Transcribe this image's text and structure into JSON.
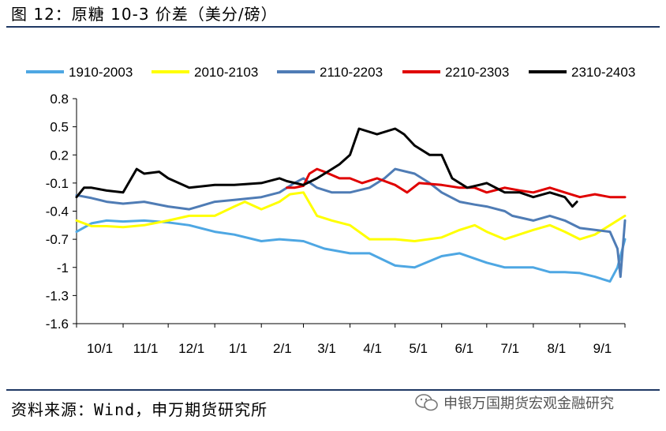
{
  "header": {
    "title": "图 12：原糖 10-3 价差（美分/磅）"
  },
  "footer": {
    "source": "资料来源：Wind，申万期货研究所",
    "watermark": "申银万国期货宏观金融研究"
  },
  "chart_data": {
    "type": "line",
    "title": "",
    "xlabel": "",
    "ylabel": "",
    "ylim": [
      -1.6,
      0.8
    ],
    "yticks": [
      "0.8",
      "0.5",
      "0.2",
      "-0.1",
      "-0.4",
      "-0.7",
      "-1",
      "-1.3",
      "-1.6"
    ],
    "ytick_values": [
      0.8,
      0.5,
      0.2,
      -0.1,
      -0.4,
      -0.7,
      -1.0,
      -1.3,
      -1.6
    ],
    "xticks": [
      "10/1",
      "11/1",
      "12/1",
      "1/1",
      "2/1",
      "3/1",
      "4/1",
      "5/1",
      "6/1",
      "7/1",
      "8/1",
      "9/1"
    ],
    "xtick_days": [
      0,
      31,
      61,
      92,
      123,
      151,
      182,
      212,
      243,
      273,
      304,
      335
    ],
    "xlim_days": [
      0,
      365
    ],
    "legend_position": "top",
    "grid": false,
    "series": [
      {
        "name": "1910-2003",
        "color": "#4ea7e3",
        "x": [
          0,
          10,
          20,
          31,
          45,
          61,
          75,
          92,
          105,
          123,
          135,
          151,
          165,
          182,
          195,
          212,
          225,
          243,
          255,
          273,
          285,
          304,
          315,
          325,
          335,
          345,
          355,
          360,
          365
        ],
        "y": [
          -0.62,
          -0.53,
          -0.5,
          -0.51,
          -0.5,
          -0.52,
          -0.55,
          -0.62,
          -0.65,
          -0.72,
          -0.7,
          -0.72,
          -0.8,
          -0.85,
          -0.85,
          -0.98,
          -1.0,
          -0.88,
          -0.85,
          -0.95,
          -1.0,
          -1.0,
          -1.05,
          -1.05,
          -1.06,
          -1.1,
          -1.15,
          -1.0,
          -0.7
        ]
      },
      {
        "name": "2010-2103",
        "color": "#ffff00",
        "x": [
          0,
          10,
          20,
          31,
          45,
          61,
          75,
          92,
          105,
          112,
          123,
          135,
          142,
          151,
          160,
          170,
          182,
          195,
          212,
          225,
          243,
          255,
          265,
          273,
          285,
          304,
          315,
          325,
          335,
          345,
          355,
          365
        ],
        "y": [
          -0.5,
          -0.56,
          -0.56,
          -0.57,
          -0.55,
          -0.5,
          -0.45,
          -0.45,
          -0.35,
          -0.3,
          -0.38,
          -0.3,
          -0.22,
          -0.2,
          -0.45,
          -0.5,
          -0.55,
          -0.7,
          -0.7,
          -0.72,
          -0.68,
          -0.6,
          -0.55,
          -0.62,
          -0.7,
          -0.6,
          -0.55,
          -0.62,
          -0.7,
          -0.65,
          -0.55,
          -0.45
        ]
      },
      {
        "name": "2110-2203",
        "color": "#4f7cb5",
        "x": [
          0,
          10,
          20,
          31,
          45,
          61,
          75,
          92,
          105,
          123,
          135,
          145,
          151,
          160,
          170,
          182,
          195,
          205,
          212,
          225,
          235,
          243,
          255,
          265,
          273,
          285,
          290,
          304,
          315,
          325,
          335,
          345,
          355,
          360,
          362,
          365
        ],
        "y": [
          -0.23,
          -0.26,
          -0.3,
          -0.32,
          -0.3,
          -0.35,
          -0.38,
          -0.3,
          -0.28,
          -0.25,
          -0.2,
          -0.1,
          -0.05,
          -0.15,
          -0.2,
          -0.2,
          -0.15,
          -0.05,
          0.05,
          0.0,
          -0.1,
          -0.2,
          -0.3,
          -0.33,
          -0.35,
          -0.4,
          -0.45,
          -0.5,
          -0.45,
          -0.5,
          -0.58,
          -0.6,
          -0.62,
          -0.8,
          -1.1,
          -0.5
        ]
      },
      {
        "name": "2210-2303",
        "color": "#e00000",
        "x": [
          140,
          145,
          151,
          155,
          160,
          165,
          175,
          182,
          190,
          200,
          212,
          220,
          228,
          243,
          255,
          265,
          273,
          285,
          295,
          304,
          315,
          325,
          335,
          345,
          355,
          365
        ],
        "y": [
          -0.15,
          -0.15,
          -0.13,
          0.0,
          0.05,
          0.02,
          -0.05,
          -0.05,
          -0.1,
          -0.05,
          -0.12,
          -0.2,
          -0.1,
          -0.12,
          -0.15,
          -0.15,
          -0.2,
          -0.15,
          -0.18,
          -0.2,
          -0.15,
          -0.2,
          -0.25,
          -0.22,
          -0.25,
          -0.25
        ]
      },
      {
        "name": "2310-2403",
        "color": "#000000",
        "x": [
          0,
          5,
          10,
          20,
          31,
          40,
          45,
          55,
          61,
          75,
          92,
          105,
          123,
          135,
          140,
          151,
          160,
          170,
          175,
          182,
          188,
          200,
          212,
          218,
          225,
          235,
          243,
          250,
          260,
          268,
          273,
          285,
          295,
          304,
          315,
          325,
          330,
          333
        ],
        "y": [
          -0.25,
          -0.15,
          -0.15,
          -0.18,
          -0.2,
          0.05,
          0.0,
          0.02,
          -0.05,
          -0.15,
          -0.12,
          -0.12,
          -0.1,
          -0.05,
          -0.08,
          -0.12,
          -0.05,
          0.05,
          0.1,
          0.2,
          0.48,
          0.42,
          0.48,
          0.42,
          0.3,
          0.2,
          0.2,
          -0.05,
          -0.15,
          -0.12,
          -0.1,
          -0.2,
          -0.2,
          -0.25,
          -0.2,
          -0.25,
          -0.35,
          -0.3
        ]
      }
    ]
  }
}
